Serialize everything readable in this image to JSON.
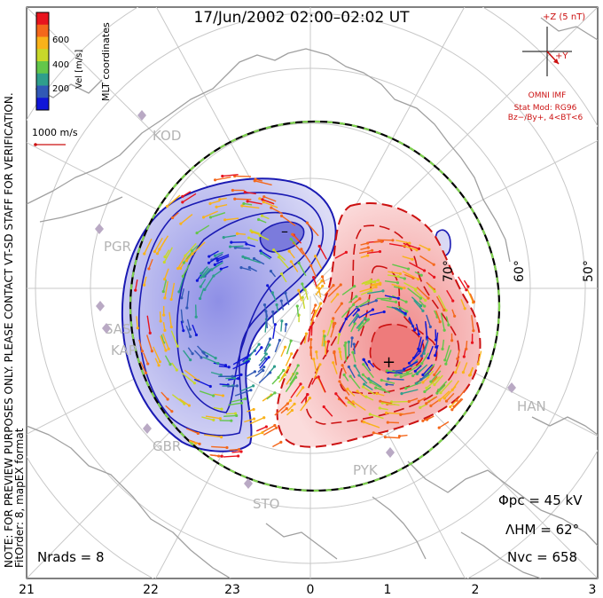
{
  "title": "17/Jun/2002 02:00–02:02 UT",
  "side_notes": {
    "line1": "NOTE: FOR PREVIEW PURPOSES ONLY. PLEASE CONTACT VT-SD STAFF FOR VERIFICATION.",
    "line2": "FitOrder: 8, mapEX format"
  },
  "coords_label": "MLT coordinates",
  "colorbar": {
    "label": "Vel [m/s]",
    "ticks": [
      "600",
      "400",
      "200"
    ],
    "colors": [
      "#e8141e",
      "#f4681c",
      "#f9b21a",
      "#c8d82a",
      "#63c64a",
      "#2f9e8c",
      "#3159b6",
      "#1016d8"
    ]
  },
  "vector_scale_label": "1000 m/s",
  "imf": {
    "label_z": "+Z (5 nT)",
    "label_y": "+Y",
    "source": "OMNI IMF",
    "model": "Stat Mod: RG96",
    "condition": "Bz−/By+, 4<BT<6"
  },
  "stations": [
    {
      "name": "KOD"
    },
    {
      "name": "PGR"
    },
    {
      "name": "SAS"
    },
    {
      "name": "KAP"
    },
    {
      "name": "GBR"
    },
    {
      "name": "STO"
    },
    {
      "name": "PYK"
    },
    {
      "name": "HAN"
    }
  ],
  "lat_labels": [
    "70°",
    "60°",
    "50°"
  ],
  "mlt_labels": [
    "21",
    "22",
    "23",
    "0",
    "1",
    "2",
    "3"
  ],
  "stats": {
    "phi_label": "Φpc = 45 kV",
    "lambda_label": "ΛHM = 62°",
    "nvc_label": "Nvc = 658",
    "nrads_label": "Nrads = 8"
  },
  "colors": {
    "positive": "#cc1111",
    "negative": "#1a1ab3",
    "grid": "#bfbfbf",
    "land": "#9a9a9a",
    "station": "#b9a9c4"
  }
}
